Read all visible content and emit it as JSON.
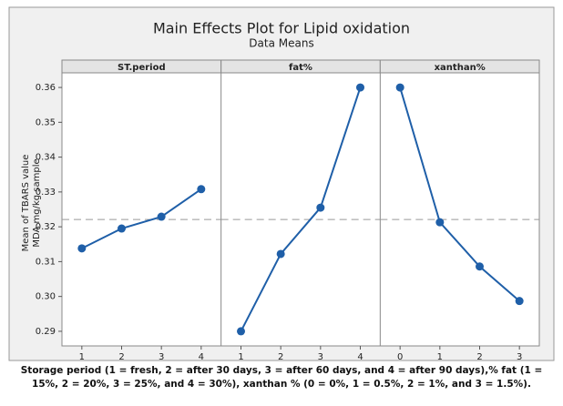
{
  "chart_data": {
    "type": "line",
    "title": "Main Effects Plot for Lipid oxidation",
    "subtitle": "Data Means",
    "ylabel": [
      "Mean of TBARS value",
      "MDA mg/kg sample"
    ],
    "color": "#1f5fa8",
    "ylim": [
      0.2858,
      0.3642
    ],
    "yticks": [
      0.29,
      {
        "value": 0.3,
        "label": "0.30"
      },
      0.31,
      0.32,
      0.33,
      0.34,
      0.35,
      0.36
    ],
    "reference_line": 0.3221,
    "panels": [
      {
        "name": "ST.period",
        "x": [
          1,
          2,
          3,
          4
        ],
        "values": [
          0.3138,
          0.3195,
          0.3229,
          0.3308
        ],
        "xlim": [
          0.5,
          4.5
        ],
        "xticks": [
          1,
          2,
          3,
          4
        ]
      },
      {
        "name": "fat%",
        "x": [
          1,
          2,
          3,
          4
        ],
        "values": [
          0.29,
          0.3122,
          0.3255,
          0.36
        ],
        "xlim": [
          0.5,
          4.5
        ],
        "xticks": [
          1,
          2,
          3,
          4
        ]
      },
      {
        "name": "xanthan%",
        "x": [
          0,
          1,
          2,
          3
        ],
        "values": [
          0.36,
          0.3213,
          0.3086,
          0.2987
        ],
        "xlim": [
          -0.5,
          3.5
        ],
        "xticks": [
          0,
          1,
          2,
          3
        ]
      }
    ],
    "caption": "Storage period (1 = fresh, 2 = after 30 days, 3 = after 60 days, and 4 = after 90 days),% fat (1 = 15%, 2 = 20%, 3 = 25%, and 4 = 30%), xanthan % (0 = 0%, 1 = 0.5%, 2 = 1%, and 3 = 1.5%)."
  }
}
